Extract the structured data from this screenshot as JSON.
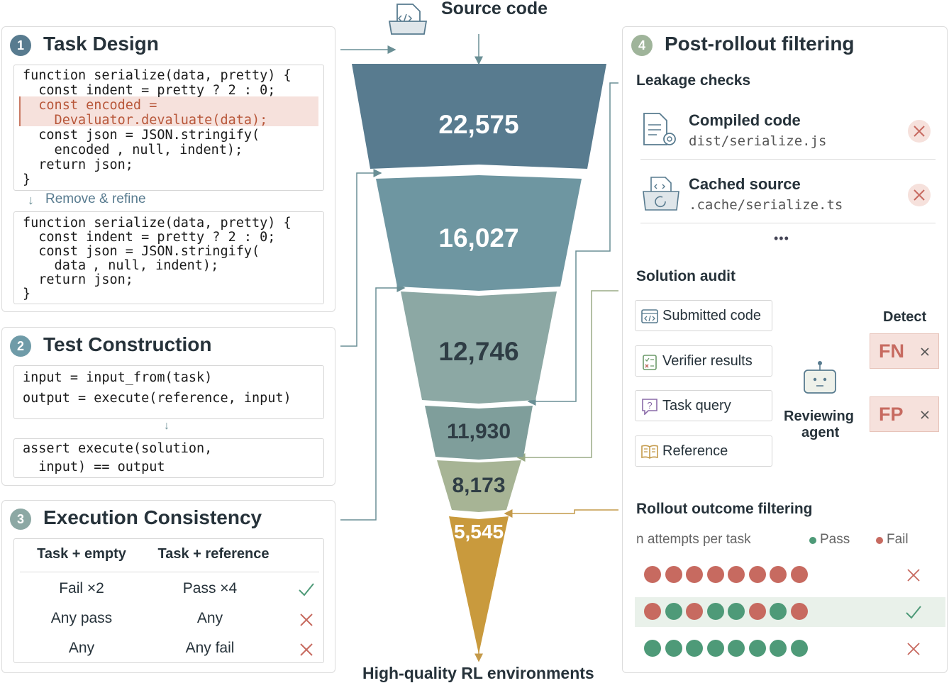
{
  "colors": {
    "funnel": [
      "#587b8f",
      "#6e96a1",
      "#8ca8a4",
      "#7f9e9b",
      "#a7b495",
      "#c99a3d"
    ],
    "pass": "#4e9a78",
    "fail": "#c76a60",
    "badge": "#6f9ba8",
    "badge4": "#9fb49a",
    "arrow": "#6a8f95",
    "olive_line": "#9aab86",
    "orange_line": "#c49a4a"
  },
  "header": {
    "source_label": "Source code",
    "footer_label": "High-quality RL environments",
    "source_icon": "folder-code-icon"
  },
  "funnel": {
    "values": [
      "22,575",
      "16,027",
      "12,746",
      "11,930",
      "8,173",
      "5,545"
    ]
  },
  "panel1": {
    "num": "1",
    "title": "Task Design",
    "code_before": [
      "function serialize(data, pretty) {",
      "  const indent = pretty ? 2 : 0;",
      "  const encoded =",
      "    Devaluator.devaluate(data);",
      "  const json = JSON.stringify(",
      "    encoded",
      ", null, indent);",
      "  return json;",
      "}"
    ],
    "refine_label": "Remove & refine",
    "code_after": [
      "function serialize(data, pretty) {",
      "  const indent = pretty ? 2 : 0;",
      "  const json = JSON.stringify(",
      "    data",
      ", null, indent);",
      "  return json;",
      "}"
    ]
  },
  "panel2": {
    "num": "2",
    "title": "Test Construction",
    "line1": "input = input_from(task)",
    "line2": "output = execute(reference, input)",
    "line3": "assert execute(solution,",
    "line4": "  input) == output"
  },
  "panel3": {
    "num": "3",
    "title": "Execution Consistency",
    "headers": [
      "Task + empty",
      "Task + reference"
    ],
    "rows": [
      {
        "a": "Fail ×2",
        "b": "Pass ×4",
        "ok": true
      },
      {
        "a": "Any pass",
        "b": "Any",
        "ok": false
      },
      {
        "a": "Any",
        "b": "Any fail",
        "ok": false
      }
    ]
  },
  "panel4": {
    "num": "4",
    "title": "Post-rollout filtering",
    "leakage": {
      "title": "Leakage checks",
      "items": [
        {
          "name": "Compiled code",
          "path": "dist/serialize.js",
          "icon": "document-gear-icon"
        },
        {
          "name": "Cached source",
          "path": ".cache/serialize.ts",
          "icon": "folder-refresh-icon"
        }
      ],
      "more": "•••"
    },
    "audit": {
      "title": "Solution audit",
      "inputs": [
        "Submitted code",
        "Verifier results",
        "Task query",
        "Reference"
      ],
      "agent_line1": "Reviewing",
      "agent_line2": "agent",
      "detect_title": "Detect",
      "detect": [
        "FN",
        "FP"
      ]
    },
    "rollout": {
      "title": "Rollout outcome filtering",
      "attempts_label": "n attempts per task",
      "pass_label": "Pass",
      "fail_label": "Fail",
      "rows": [
        {
          "outcomes": [
            "F",
            "F",
            "F",
            "F",
            "F",
            "F",
            "F",
            "F"
          ],
          "keep": false
        },
        {
          "outcomes": [
            "F",
            "P",
            "F",
            "P",
            "P",
            "F",
            "P",
            "F"
          ],
          "keep": true
        },
        {
          "outcomes": [
            "P",
            "P",
            "P",
            "P",
            "P",
            "P",
            "P",
            "P"
          ],
          "keep": false
        }
      ]
    }
  }
}
